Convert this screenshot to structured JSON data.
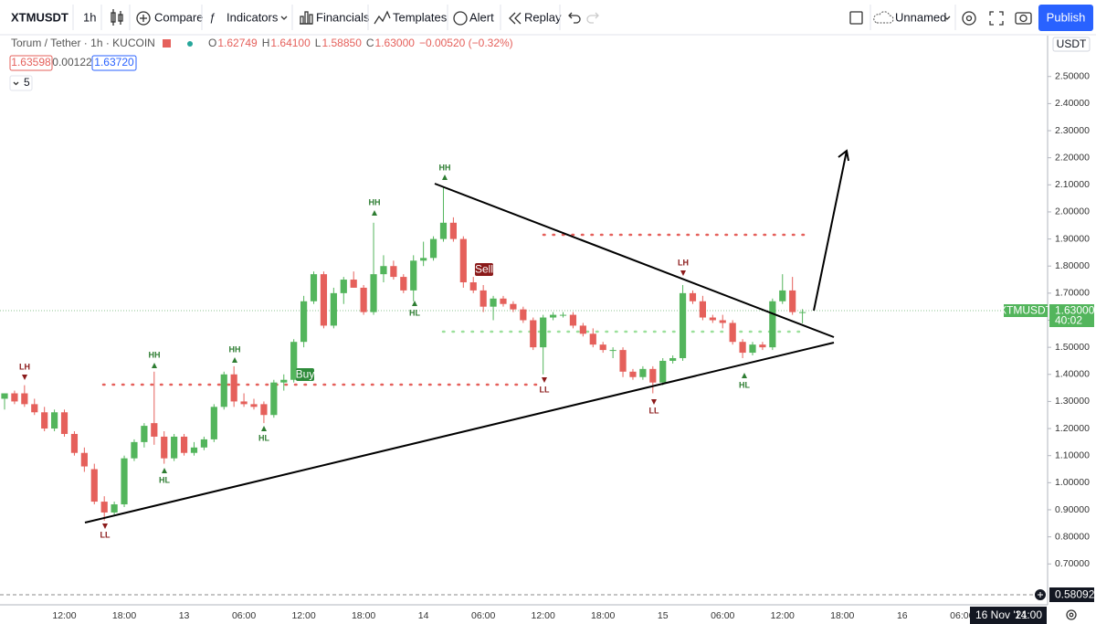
{
  "toolbar": {
    "symbol": "XTMUSDT",
    "interval": "1h",
    "compare": "Compare",
    "indicators": "Indicators",
    "financials": "Financials",
    "templates": "Templates",
    "alert": "Alert",
    "replay": "Replay",
    "layout": "Unnamed",
    "publish": "Publish"
  },
  "legend": {
    "title": "Torum / Tether · 1h · KUCOIN",
    "ohlc": [
      {
        "label": "O",
        "value": "1.62749"
      },
      {
        "label": "H",
        "value": "1.64100"
      },
      {
        "label": "L",
        "value": "1.58850"
      },
      {
        "label": "C",
        "value": "1.63000"
      }
    ],
    "change": "−0.00520 (−0.32%)",
    "bid": "1.63598",
    "spread": "0.00122",
    "ask": "1.63720",
    "indicator_count": "5"
  },
  "annotations": [
    "LH",
    "HH",
    "HL",
    "HH",
    "HL",
    "Buy",
    "HH",
    "HL",
    "HH",
    "Sell",
    "LL",
    "LL",
    "LH",
    "HL",
    "LL"
  ],
  "price_axis": {
    "currency": "USDT",
    "symbol_label": "XTMUSDT",
    "last_price": "1.63000",
    "countdown": "40:02",
    "crosshair_price": "0.58092"
  },
  "time_label": {
    "date": "16 Nov '21",
    "time": "14:00"
  },
  "chart_data": {
    "type": "candlestick",
    "up_color": "#53b55c",
    "down_color": "#e5605b",
    "grid": false,
    "categories": [
      null,
      null,
      null,
      null,
      null,
      null,
      "12:00",
      null,
      null,
      null,
      null,
      null,
      "18:00",
      null,
      null,
      null,
      null,
      null,
      "13",
      null,
      null,
      null,
      null,
      null,
      "06:00",
      null,
      null,
      null,
      null,
      null,
      "12:00",
      null,
      null,
      null,
      null,
      null,
      "18:00",
      null,
      null,
      null,
      null,
      null,
      "14",
      null,
      null,
      null,
      null,
      null,
      "06:00",
      null,
      null,
      null,
      null,
      null,
      "12:00",
      null,
      null,
      null,
      null,
      null,
      "18:00",
      null,
      null,
      null,
      null,
      null,
      "15",
      null,
      null,
      null,
      null,
      null,
      "06:00",
      null,
      null,
      null,
      null,
      null,
      "12:00",
      null,
      null,
      null,
      null,
      null,
      "18:00",
      null,
      null,
      null,
      null,
      null,
      "16",
      null,
      null,
      null,
      null,
      null,
      "06:00",
      null,
      null,
      null,
      null,
      null,
      null,
      null,
      null
    ],
    "open": [
      1.31,
      1.33,
      1.33,
      1.29,
      1.26,
      1.2,
      1.26,
      1.18,
      1.11,
      1.05,
      0.93,
      0.89,
      0.92,
      1.09,
      1.15,
      1.22,
      1.17,
      1.09,
      1.17,
      1.11,
      1.13,
      1.16,
      1.28,
      1.4,
      1.3,
      1.29,
      1.29,
      1.25,
      1.37,
      1.38,
      1.52,
      1.67,
      1.77,
      1.58,
      1.7,
      1.75,
      1.72,
      1.63,
      1.77,
      1.8,
      1.76,
      1.71,
      1.82,
      1.83,
      1.9,
      1.96,
      1.9,
      1.74,
      1.71,
      1.65,
      1.68,
      1.66,
      1.64,
      1.6,
      1.5,
      1.61,
      1.62,
      1.62,
      1.58,
      1.55,
      1.51,
      1.49,
      1.49,
      1.41,
      1.39,
      1.42,
      1.37,
      1.45,
      1.46,
      1.7,
      1.67,
      1.61,
      1.6,
      1.59,
      1.52,
      1.48,
      1.51,
      1.5,
      1.67,
      1.71,
      1.62749,
      null,
      null,
      null,
      null,
      null,
      null,
      null,
      null,
      null,
      null,
      null,
      null,
      null,
      null,
      null,
      null,
      null,
      null,
      null,
      null,
      null,
      null,
      null,
      null
    ],
    "high": [
      1.33,
      1.34,
      1.36,
      1.31,
      1.28,
      1.27,
      1.27,
      1.19,
      1.13,
      1.07,
      0.95,
      0.93,
      1.1,
      1.16,
      1.22,
      1.41,
      1.19,
      1.18,
      1.18,
      1.15,
      1.17,
      1.29,
      1.41,
      1.43,
      1.33,
      1.31,
      1.3,
      1.38,
      1.4,
      1.53,
      1.69,
      1.78,
      1.78,
      1.72,
      1.76,
      1.78,
      1.73,
      1.96,
      1.84,
      1.82,
      1.77,
      1.84,
      1.89,
      1.91,
      2.09,
      1.98,
      1.91,
      1.76,
      1.73,
      1.69,
      1.69,
      1.67,
      1.65,
      1.61,
      1.62,
      1.63,
      1.63,
      1.63,
      1.59,
      1.57,
      1.52,
      1.5,
      1.5,
      1.42,
      1.43,
      1.43,
      1.46,
      1.47,
      1.73,
      1.71,
      1.69,
      1.62,
      1.62,
      1.6,
      1.53,
      1.52,
      1.52,
      1.68,
      1.77,
      1.76,
      1.641,
      null,
      null,
      null,
      null,
      null,
      null,
      null,
      null,
      null,
      null,
      null,
      null,
      null,
      null,
      null,
      null,
      null,
      null,
      null,
      null,
      null,
      null,
      null,
      null
    ],
    "low": [
      1.27,
      1.29,
      1.28,
      1.25,
      1.19,
      1.19,
      1.17,
      1.1,
      1.04,
      0.92,
      0.86,
      0.88,
      0.91,
      1.08,
      1.13,
      1.14,
      1.07,
      1.08,
      1.1,
      1.1,
      1.12,
      1.15,
      1.27,
      1.28,
      1.28,
      1.27,
      1.22,
      1.24,
      1.34,
      1.37,
      1.5,
      1.66,
      1.57,
      1.57,
      1.66,
      1.72,
      1.62,
      1.62,
      1.74,
      1.75,
      1.7,
      1.67,
      1.8,
      1.82,
      1.89,
      1.89,
      1.72,
      1.7,
      1.63,
      1.6,
      1.65,
      1.63,
      1.59,
      1.49,
      1.4,
      1.6,
      1.61,
      1.57,
      1.54,
      1.5,
      1.48,
      1.46,
      1.39,
      1.38,
      1.38,
      1.33,
      1.36,
      1.44,
      1.45,
      1.66,
      1.6,
      1.59,
      1.57,
      1.51,
      1.46,
      1.47,
      1.49,
      1.49,
      1.66,
      1.62,
      1.5885,
      null,
      null,
      null,
      null,
      null,
      null,
      null,
      null,
      null,
      null,
      null,
      null,
      null,
      null,
      null,
      null,
      null,
      null,
      null,
      null,
      null,
      null,
      null,
      null
    ],
    "close": [
      1.33,
      1.3,
      1.29,
      1.26,
      1.2,
      1.26,
      1.18,
      1.11,
      1.06,
      0.93,
      0.89,
      0.92,
      1.09,
      1.15,
      1.21,
      1.17,
      1.09,
      1.17,
      1.11,
      1.13,
      1.16,
      1.28,
      1.4,
      1.3,
      1.29,
      1.28,
      1.25,
      1.37,
      1.38,
      1.52,
      1.67,
      1.77,
      1.58,
      1.7,
      1.75,
      1.72,
      1.63,
      1.77,
      1.8,
      1.76,
      1.71,
      1.82,
      1.83,
      1.9,
      1.96,
      1.9,
      1.74,
      1.71,
      1.65,
      1.68,
      1.66,
      1.64,
      1.6,
      1.5,
      1.61,
      1.62,
      1.62,
      1.58,
      1.55,
      1.51,
      1.49,
      1.49,
      1.41,
      1.39,
      1.42,
      1.37,
      1.45,
      1.46,
      1.7,
      1.67,
      1.61,
      1.6,
      1.59,
      1.52,
      1.48,
      1.51,
      1.5,
      1.67,
      1.71,
      1.63,
      1.63,
      null,
      null,
      null,
      null,
      null,
      null,
      null,
      null,
      null,
      null,
      null,
      null,
      null,
      null,
      null,
      null,
      null,
      null,
      null,
      null,
      null,
      null,
      null,
      null
    ],
    "ylim": [
      0.549,
      2.651
    ],
    "yticks": [
      {
        "value": 0.7,
        "label": "0.70000"
      },
      {
        "value": 0.8,
        "label": "0.80000"
      },
      {
        "value": 0.9,
        "label": "0.90000"
      },
      {
        "value": 1.0,
        "label": "1.00000"
      },
      {
        "value": 1.1,
        "label": "1.10000"
      },
      {
        "value": 1.2,
        "label": "1.20000"
      },
      {
        "value": 1.3,
        "label": "1.30000"
      },
      {
        "value": 1.4,
        "label": "1.40000"
      },
      {
        "value": 1.5,
        "label": "1.50000"
      },
      {
        "value": 1.6,
        "label": "1.60000"
      },
      {
        "value": 1.7,
        "label": "1.70000"
      },
      {
        "value": 1.8,
        "label": "1.80000"
      },
      {
        "value": 1.9,
        "label": "1.90000"
      },
      {
        "value": 2.0,
        "label": "2.00000"
      },
      {
        "value": 2.1,
        "label": "2.10000"
      },
      {
        "value": 2.2,
        "label": "2.20000"
      },
      {
        "value": 2.3,
        "label": "2.30000"
      },
      {
        "value": 2.4,
        "label": "2.40000"
      },
      {
        "value": 2.5,
        "label": "2.50000"
      }
    ]
  }
}
